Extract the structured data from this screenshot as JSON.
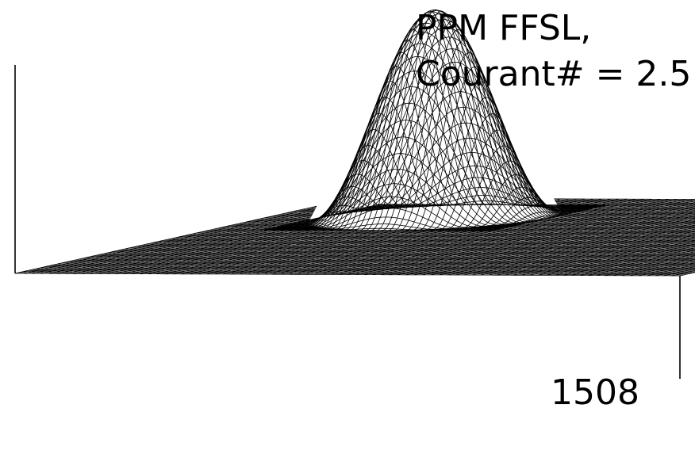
{
  "chart_data": {
    "type": "surface3d",
    "annotations": [
      {
        "text": "PPM FFSL,"
      },
      {
        "text": "Courant# = 2.5"
      },
      {
        "text": "1508"
      }
    ],
    "surface": {
      "description_shape": "single cosine-bell hill on flat plane",
      "grid_size": 80,
      "domain": {
        "x": [
          0,
          1
        ],
        "y": [
          0,
          1
        ]
      },
      "hill": {
        "center": [
          0.25,
          0.75
        ],
        "radius": 0.17,
        "peak": 1.0,
        "base": 0.0
      }
    },
    "axes_box": {
      "vertical_edges_visible": [
        "left",
        "right"
      ]
    },
    "grid": false
  },
  "colors": {
    "mesh": "#000000",
    "background": "#ffffff"
  }
}
